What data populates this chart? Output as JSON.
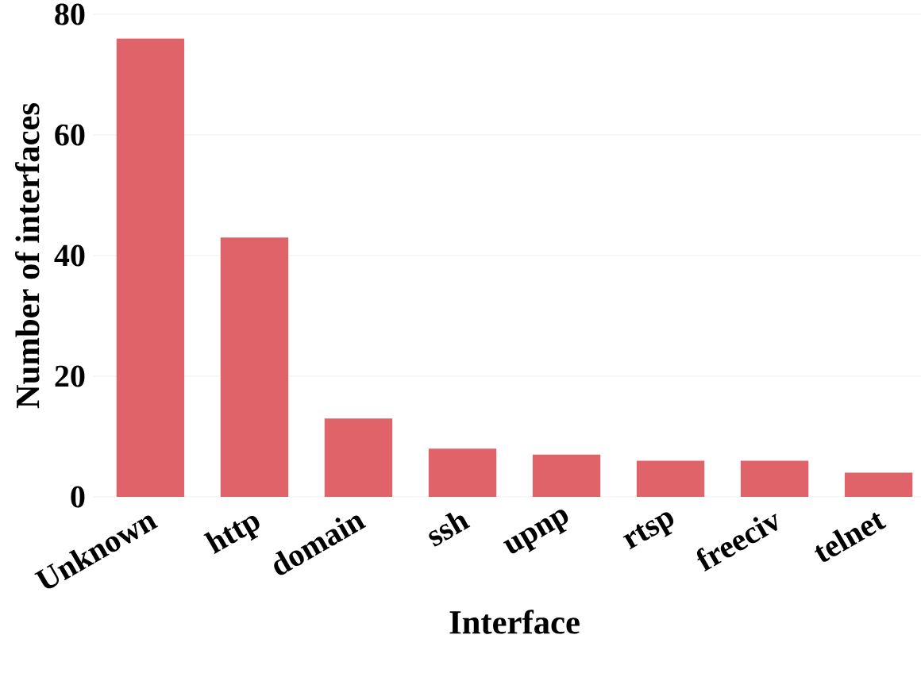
{
  "chart_data": {
    "type": "bar",
    "xlabel": "Interface",
    "ylabel": "Number of interfaces",
    "categories": [
      "Unknown",
      "http",
      "domain",
      "ssh",
      "upnp",
      "rtsp",
      "freeciv",
      "telnet"
    ],
    "values": [
      76,
      43,
      13,
      8,
      7,
      6,
      6,
      4
    ],
    "color": "#e0636a",
    "ylim": [
      0,
      80
    ],
    "yticks": [
      0,
      20,
      40,
      60,
      80
    ],
    "grid": "y"
  }
}
